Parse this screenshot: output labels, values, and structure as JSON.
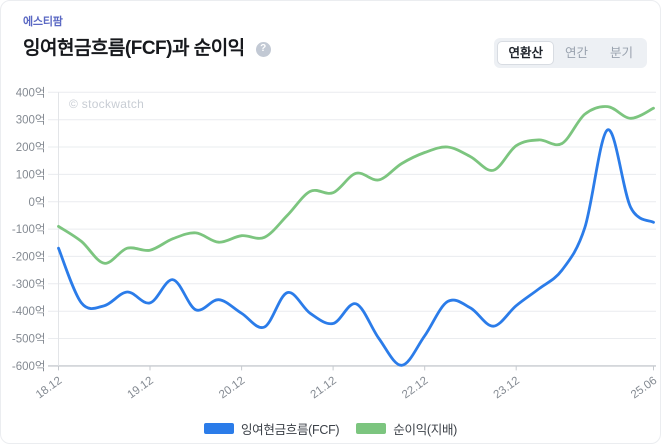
{
  "header": {
    "company": "에스티팜",
    "title": "잉여현금흐름(FCF)과 순이익",
    "help_icon": "?"
  },
  "tabs": [
    {
      "label": "연환산",
      "selected": true
    },
    {
      "label": "연간",
      "selected": false
    },
    {
      "label": "분기",
      "selected": false
    }
  ],
  "watermark": "© stockwatch",
  "legend": [
    {
      "label": "잉여현금흐름(FCF)",
      "color": "#2b7ce9"
    },
    {
      "label": "순이익(지배)",
      "color": "#7cc57f"
    }
  ],
  "colors": {
    "company_accent": "#5a68c3",
    "fcf_line": "#2b7ce9",
    "net_income_line": "#7cc57f",
    "grid": "#eaecef",
    "axis": "#c6cacf",
    "axis_label": "#848a92"
  },
  "chart_data": {
    "type": "line",
    "title": "잉여현금흐름(FCF)과 순이익",
    "unit": "억",
    "x": [
      "18.12",
      "19.03",
      "19.06",
      "19.09",
      "19.12",
      "20.03",
      "20.06",
      "20.09",
      "20.12",
      "21.03",
      "21.06",
      "21.09",
      "21.12",
      "22.03",
      "22.06",
      "22.09",
      "22.12",
      "23.03",
      "23.06",
      "23.09",
      "23.12",
      "24.03",
      "24.06",
      "24.09",
      "24.12",
      "25.03",
      "25.06"
    ],
    "x_tick_indices": [
      0,
      4,
      8,
      12,
      16,
      20,
      26
    ],
    "x_tick_labels": [
      "18.12",
      "19.12",
      "20.12",
      "21.12",
      "22.12",
      "23.12",
      "25.06"
    ],
    "y_tick_labels": [
      "400억",
      "300억",
      "200억",
      "100억",
      "0억",
      "-100억",
      "-200억",
      "-300억",
      "-400억",
      "-500억",
      "-600억"
    ],
    "ylim": [
      -600,
      400
    ],
    "y_tick_step": 100,
    "grid": "horizontal",
    "legend_position": "bottom",
    "series": [
      {
        "name": "잉여현금흐름(FCF)",
        "color": "#2b7ce9",
        "values": [
          -170,
          -370,
          -380,
          -330,
          -370,
          -285,
          -395,
          -358,
          -408,
          -458,
          -332,
          -408,
          -445,
          -373,
          -500,
          -598,
          -490,
          -365,
          -388,
          -455,
          -380,
          -318,
          -250,
          -95,
          263,
          -20,
          -75
        ]
      },
      {
        "name": "순이익(지배)",
        "color": "#7cc57f",
        "values": [
          -90,
          -145,
          -225,
          -170,
          -177,
          -135,
          -114,
          -148,
          -124,
          -130,
          -50,
          38,
          33,
          104,
          80,
          140,
          180,
          200,
          165,
          115,
          205,
          226,
          213,
          320,
          348,
          305,
          342
        ]
      }
    ]
  }
}
